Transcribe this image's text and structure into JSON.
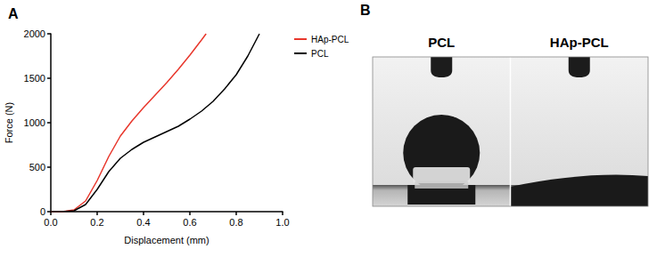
{
  "chart_data": {
    "type": "line",
    "title": "A",
    "x_label": "Displacement (mm)",
    "y_label": "Force (N)",
    "series": [
      {
        "name": "HAp-PCL",
        "color": "#e8372c",
        "x": [
          0,
          0.05,
          0.1,
          0.15,
          0.2,
          0.25,
          0.3,
          0.35,
          0.4,
          0.45,
          0.5,
          0.55,
          0.6,
          0.65,
          0.67
        ],
        "values": [
          0,
          0,
          20,
          120,
          350,
          620,
          850,
          1020,
          1170,
          1310,
          1450,
          1600,
          1760,
          1930,
          2000
        ]
      },
      {
        "name": "PCL",
        "color": "#000000",
        "x": [
          0,
          0.05,
          0.1,
          0.15,
          0.2,
          0.25,
          0.3,
          0.35,
          0.4,
          0.45,
          0.5,
          0.55,
          0.6,
          0.65,
          0.7,
          0.75,
          0.8,
          0.85,
          0.9
        ],
        "values": [
          0,
          0,
          10,
          80,
          250,
          450,
          600,
          700,
          780,
          840,
          900,
          960,
          1040,
          1130,
          1240,
          1380,
          1540,
          1750,
          2000
        ]
      }
    ],
    "xlim": [
      0,
      1
    ],
    "xticks": [
      {
        "value": 0,
        "label": "0.0"
      },
      0.2,
      0.4,
      0.6,
      0.8,
      {
        "value": 1,
        "label": "1.0"
      }
    ],
    "ylim": [
      0,
      2000
    ],
    "yticks": [
      0,
      500,
      1000,
      1500,
      2000
    ],
    "grid": false,
    "legend": "top-right"
  },
  "panel_b": {
    "label": "B",
    "images": [
      {
        "label": "PCL"
      },
      {
        "label": "HAp-PCL"
      }
    ]
  }
}
